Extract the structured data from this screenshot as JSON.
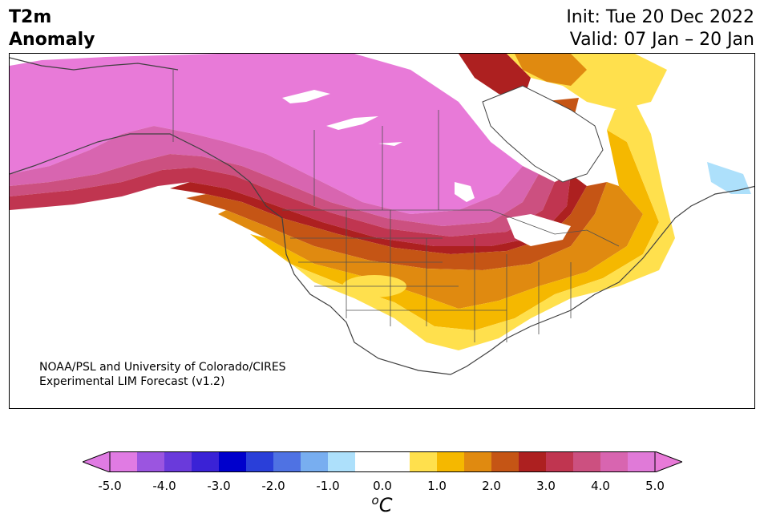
{
  "header": {
    "variable_line1": "T2m",
    "variable_line2": "Anomaly",
    "init": "Init: Tue 20 Dec 2022",
    "valid": "Valid: 07 Jan – 20 Jan"
  },
  "credit": {
    "line1": "NOAA/PSL and University of Colorado/CIRES",
    "line2": "Experimental LIM Forecast (v1.2)"
  },
  "colorbar": {
    "unit_sup": "o",
    "unit": "C",
    "ticks": [
      "-5.0",
      "-4.0",
      "-3.0",
      "-2.0",
      "-1.0",
      "0.0",
      "1.0",
      "2.0",
      "3.0",
      "4.0",
      "5.0"
    ],
    "colors": [
      "#e07be3",
      "#9b55e0",
      "#6a3adb",
      "#3a22d6",
      "#0000cc",
      "#2a3fd9",
      "#4f72e3",
      "#78aef0",
      "#ade0fb",
      "#ffffff",
      "#ffffff",
      "#ffe04d",
      "#f5b800",
      "#e08a10",
      "#c55515",
      "#ad2020",
      "#c03550",
      "#cc5080",
      "#d865b0",
      "#e07ad8"
    ],
    "min_color": "#e07be3",
    "max_color": "#e87ad8"
  },
  "map": {
    "region": "North America",
    "land_color": "#ffffff",
    "border_color": "#404040"
  }
}
